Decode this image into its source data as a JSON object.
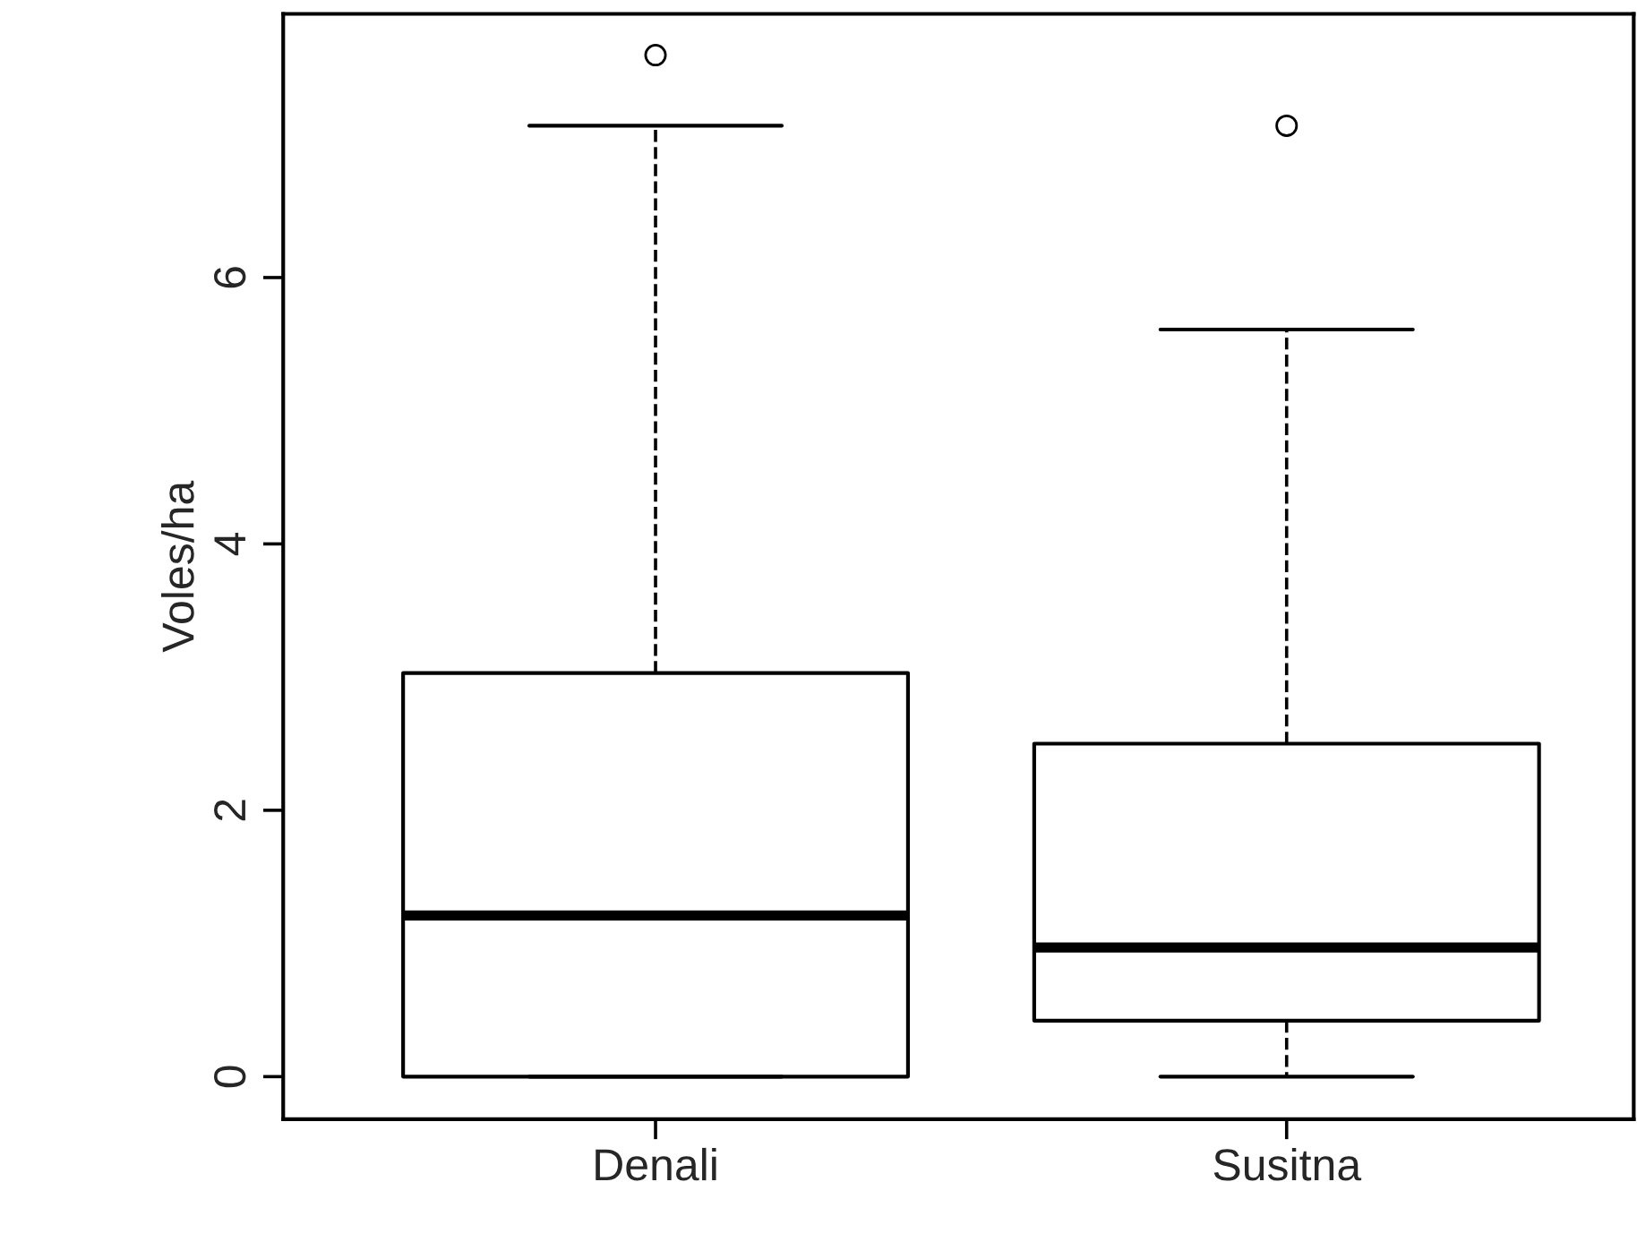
{
  "chart_data": {
    "type": "box",
    "ylabel": "Voles/ha",
    "categories": [
      "Denali",
      "Susitna"
    ],
    "boxes": [
      {
        "low": 0,
        "q1": 0,
        "median": 1.21,
        "q3": 3.03,
        "high": 7.14,
        "outliers": [
          7.67
        ]
      },
      {
        "low": 0,
        "q1": 0.42,
        "median": 0.97,
        "q3": 2.5,
        "high": 5.61,
        "outliers": [
          7.14
        ]
      }
    ],
    "ylim": [
      -0.32,
      7.98
    ],
    "yticks": [
      0,
      2,
      4,
      6
    ],
    "grid": false
  }
}
